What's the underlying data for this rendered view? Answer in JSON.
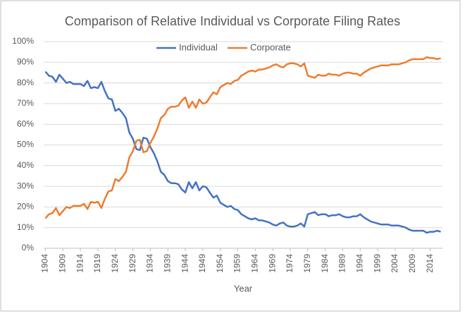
{
  "chart_data": {
    "type": "line",
    "title": "Comparison of Relative Individual vs Corporate Filing Rates",
    "x_label": "Year",
    "x": [
      1904,
      1905,
      1906,
      1907,
      1908,
      1909,
      1910,
      1911,
      1912,
      1913,
      1914,
      1915,
      1916,
      1917,
      1918,
      1919,
      1920,
      1921,
      1922,
      1923,
      1924,
      1925,
      1926,
      1927,
      1928,
      1929,
      1930,
      1931,
      1932,
      1933,
      1934,
      1935,
      1936,
      1937,
      1938,
      1939,
      1940,
      1941,
      1942,
      1943,
      1944,
      1945,
      1946,
      1947,
      1948,
      1949,
      1950,
      1951,
      1952,
      1953,
      1954,
      1955,
      1956,
      1957,
      1958,
      1959,
      1960,
      1961,
      1962,
      1963,
      1964,
      1965,
      1966,
      1967,
      1968,
      1969,
      1970,
      1971,
      1972,
      1973,
      1974,
      1975,
      1976,
      1977,
      1978,
      1979,
      1980,
      1981,
      1982,
      1983,
      1984,
      1985,
      1986,
      1987,
      1988,
      1989,
      1990,
      1991,
      1992,
      1993,
      1994,
      1995,
      1996,
      1997,
      1998,
      1999,
      2000,
      2001,
      2002,
      2003,
      2004,
      2005,
      2006,
      2007,
      2008,
      2009,
      2010,
      2011,
      2012,
      2013,
      2014,
      2015,
      2016,
      2017
    ],
    "series": [
      {
        "name": "Individual",
        "color": "#4472c4",
        "values": [
          85.5,
          83.5,
          83,
          80.5,
          84,
          82,
          80,
          80.5,
          79.5,
          79.5,
          79.5,
          78.5,
          81,
          77.5,
          78,
          77.5,
          80.5,
          76,
          72.5,
          72,
          66.5,
          67.5,
          65.5,
          63,
          56,
          53,
          48,
          47.5,
          53.5,
          53,
          49,
          46,
          42,
          37,
          35.5,
          32.5,
          31.5,
          31.5,
          31,
          28.5,
          27,
          32,
          29,
          32,
          28,
          30,
          29.5,
          27,
          24.5,
          25.5,
          22,
          21,
          20,
          20.5,
          19,
          18.5,
          16.5,
          15.5,
          14.5,
          14,
          14.5,
          13.5,
          13.5,
          13,
          12.5,
          11.5,
          11,
          12,
          12.5,
          11,
          10.5,
          10.5,
          11,
          12,
          10.5,
          16.5,
          17,
          17.5,
          16,
          16.5,
          16.5,
          15.5,
          16,
          16,
          16.5,
          15.5,
          15,
          15,
          15.5,
          15.5,
          16.5,
          15,
          14,
          13,
          12.5,
          12,
          11.5,
          11.5,
          11.5,
          11,
          11,
          11,
          10.5,
          10,
          9,
          8.5,
          8.5,
          8.5,
          8.5,
          7.5,
          8,
          8,
          8.5,
          8
        ]
      },
      {
        "name": "Corporate",
        "color": "#ed7d31",
        "values": [
          14.5,
          16.5,
          17,
          19.5,
          16,
          18,
          20,
          19.5,
          20.5,
          20.5,
          20.5,
          21.5,
          19,
          22.5,
          22,
          22.5,
          19.5,
          24,
          27.5,
          28,
          33.5,
          32.5,
          34.5,
          37,
          44,
          47,
          52,
          52.5,
          46.5,
          47,
          51,
          54,
          58,
          63,
          64.5,
          67.5,
          68.5,
          68.5,
          69,
          71.5,
          73,
          68,
          71,
          68,
          72,
          70,
          70.5,
          73,
          75.5,
          74.5,
          78,
          79,
          80,
          79.5,
          81,
          81.5,
          83.5,
          84.5,
          85.5,
          86,
          85.5,
          86.5,
          86.5,
          87,
          87.5,
          88.5,
          89,
          88,
          87.5,
          89,
          89.5,
          89.5,
          89,
          88,
          89.5,
          83.5,
          83,
          82.5,
          84,
          83.5,
          83.5,
          84.5,
          84,
          84,
          83.5,
          84.5,
          85,
          85,
          84.5,
          84.5,
          83.5,
          85,
          86,
          87,
          87.5,
          88,
          88.5,
          88.5,
          88.5,
          89,
          89,
          89,
          89.5,
          90,
          91,
          91.5,
          91.5,
          91.5,
          91.5,
          92.5,
          92,
          92,
          91.5,
          92
        ]
      }
    ],
    "xlim": [
      1903.5,
      2017.5
    ],
    "xticks": [
      1904,
      1909,
      1914,
      1919,
      1924,
      1929,
      1934,
      1939,
      1944,
      1949,
      1954,
      1959,
      1964,
      1969,
      1974,
      1979,
      1984,
      1989,
      1994,
      1999,
      2004,
      2009,
      2014
    ],
    "ylim": [
      0,
      100
    ],
    "yticks": [
      {
        "value": 0,
        "label": "0%"
      },
      {
        "value": 10,
        "label": "10%"
      },
      {
        "value": 20,
        "label": "20%"
      },
      {
        "value": 30,
        "label": "30%"
      },
      {
        "value": 40,
        "label": "40%"
      },
      {
        "value": 50,
        "label": "50%"
      },
      {
        "value": 60,
        "label": "60%"
      },
      {
        "value": 70,
        "label": "70%"
      },
      {
        "value": 80,
        "label": "80%"
      },
      {
        "value": 90,
        "label": "90%"
      },
      {
        "value": 100,
        "label": "100%"
      }
    ],
    "grid": true,
    "legend": "top"
  }
}
